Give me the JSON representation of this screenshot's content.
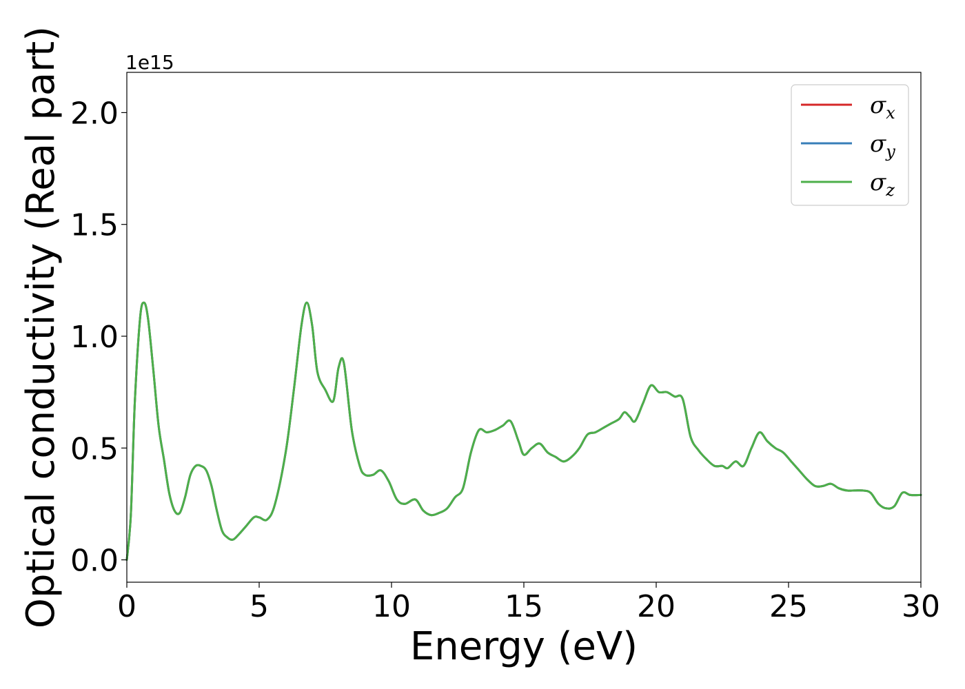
{
  "chart_data": {
    "type": "line",
    "xlabel": "Energy (eV)",
    "ylabel": "Optical conductivity (Real part)",
    "y_offset_label": "1e15",
    "xlim": [
      0,
      30
    ],
    "ylim": [
      -0.1,
      2.18
    ],
    "x_ticks": [
      0,
      5,
      10,
      15,
      20,
      25,
      30
    ],
    "x_tick_labels": [
      "0",
      "5",
      "10",
      "15",
      "20",
      "25",
      "30"
    ],
    "y_ticks": [
      0.0,
      0.5,
      1.0,
      1.5,
      2.0
    ],
    "y_tick_labels": [
      "0.0",
      "0.5",
      "1.0",
      "1.5",
      "2.0"
    ],
    "grid": false,
    "legend_position": "top-right",
    "x": [
      0,
      0.15,
      0.3,
      0.5,
      0.65,
      0.8,
      1.0,
      1.2,
      1.4,
      1.6,
      1.8,
      2.0,
      2.2,
      2.4,
      2.6,
      2.8,
      3.0,
      3.2,
      3.4,
      3.6,
      3.8,
      4.0,
      4.2,
      4.5,
      4.8,
      5.0,
      5.3,
      5.6,
      6.0,
      6.3,
      6.6,
      6.8,
      7.0,
      7.2,
      7.5,
      7.8,
      8.0,
      8.2,
      8.5,
      8.8,
      9.0,
      9.3,
      9.6,
      9.9,
      10.2,
      10.5,
      10.9,
      11.2,
      11.5,
      11.8,
      12.1,
      12.4,
      12.7,
      13.0,
      13.3,
      13.6,
      13.9,
      14.2,
      14.5,
      14.8,
      15.0,
      15.3,
      15.6,
      15.9,
      16.2,
      16.5,
      16.8,
      17.1,
      17.4,
      17.7,
      18.0,
      18.3,
      18.6,
      18.8,
      19.0,
      19.2,
      19.5,
      19.8,
      20.1,
      20.4,
      20.7,
      21.0,
      21.3,
      21.6,
      21.9,
      22.2,
      22.5,
      22.7,
      23.0,
      23.3,
      23.6,
      23.9,
      24.2,
      24.5,
      24.8,
      25.1,
      25.4,
      25.7,
      26.0,
      26.3,
      26.6,
      26.9,
      27.2,
      27.5,
      27.8,
      28.1,
      28.4,
      28.7,
      29.0,
      29.3,
      29.6,
      30.0
    ],
    "series": [
      {
        "name": "σx",
        "color": "#d62728",
        "values": [
          0.0,
          0.2,
          0.7,
          1.08,
          1.15,
          1.08,
          0.85,
          0.6,
          0.45,
          0.3,
          0.22,
          0.21,
          0.28,
          0.38,
          0.42,
          0.42,
          0.4,
          0.33,
          0.22,
          0.13,
          0.1,
          0.09,
          0.11,
          0.15,
          0.19,
          0.19,
          0.18,
          0.25,
          0.48,
          0.75,
          1.05,
          1.15,
          1.05,
          0.84,
          0.76,
          0.71,
          0.86,
          0.88,
          0.58,
          0.42,
          0.38,
          0.38,
          0.4,
          0.35,
          0.27,
          0.25,
          0.27,
          0.22,
          0.2,
          0.21,
          0.23,
          0.28,
          0.32,
          0.48,
          0.58,
          0.57,
          0.58,
          0.6,
          0.62,
          0.53,
          0.47,
          0.5,
          0.52,
          0.48,
          0.46,
          0.44,
          0.46,
          0.5,
          0.56,
          0.57,
          0.59,
          0.61,
          0.63,
          0.66,
          0.64,
          0.62,
          0.7,
          0.78,
          0.75,
          0.75,
          0.73,
          0.72,
          0.55,
          0.49,
          0.45,
          0.42,
          0.42,
          0.41,
          0.44,
          0.42,
          0.5,
          0.57,
          0.53,
          0.5,
          0.48,
          0.44,
          0.4,
          0.36,
          0.33,
          0.33,
          0.34,
          0.32,
          0.31,
          0.31,
          0.31,
          0.3,
          0.25,
          0.23,
          0.24,
          0.3,
          0.29,
          0.29
        ]
      },
      {
        "name": "σy",
        "color": "#377eb8",
        "values": [
          0.0,
          0.2,
          0.7,
          1.08,
          1.15,
          1.08,
          0.85,
          0.6,
          0.45,
          0.3,
          0.22,
          0.21,
          0.28,
          0.38,
          0.42,
          0.42,
          0.4,
          0.33,
          0.22,
          0.13,
          0.1,
          0.09,
          0.11,
          0.15,
          0.19,
          0.19,
          0.18,
          0.25,
          0.48,
          0.75,
          1.05,
          1.15,
          1.05,
          0.84,
          0.76,
          0.71,
          0.86,
          0.88,
          0.58,
          0.42,
          0.38,
          0.38,
          0.4,
          0.35,
          0.27,
          0.25,
          0.27,
          0.22,
          0.2,
          0.21,
          0.23,
          0.28,
          0.32,
          0.48,
          0.58,
          0.57,
          0.58,
          0.6,
          0.62,
          0.53,
          0.47,
          0.5,
          0.52,
          0.48,
          0.46,
          0.44,
          0.46,
          0.5,
          0.56,
          0.57,
          0.59,
          0.61,
          0.63,
          0.66,
          0.64,
          0.62,
          0.7,
          0.78,
          0.75,
          0.75,
          0.73,
          0.72,
          0.55,
          0.49,
          0.45,
          0.42,
          0.42,
          0.41,
          0.44,
          0.42,
          0.5,
          0.57,
          0.53,
          0.5,
          0.48,
          0.44,
          0.4,
          0.36,
          0.33,
          0.33,
          0.34,
          0.32,
          0.31,
          0.31,
          0.31,
          0.3,
          0.25,
          0.23,
          0.24,
          0.3,
          0.29,
          0.29
        ]
      },
      {
        "name": "σz",
        "color": "#4daf4a",
        "values": [
          0.0,
          0.2,
          0.7,
          1.08,
          1.15,
          1.08,
          0.85,
          0.6,
          0.45,
          0.3,
          0.22,
          0.21,
          0.28,
          0.38,
          0.42,
          0.42,
          0.4,
          0.33,
          0.22,
          0.13,
          0.1,
          0.09,
          0.11,
          0.15,
          0.19,
          0.19,
          0.18,
          0.25,
          0.48,
          0.75,
          1.05,
          1.15,
          1.05,
          0.84,
          0.76,
          0.71,
          0.86,
          0.88,
          0.58,
          0.42,
          0.38,
          0.38,
          0.4,
          0.35,
          0.27,
          0.25,
          0.27,
          0.22,
          0.2,
          0.21,
          0.23,
          0.28,
          0.32,
          0.48,
          0.58,
          0.57,
          0.58,
          0.6,
          0.62,
          0.53,
          0.47,
          0.5,
          0.52,
          0.48,
          0.46,
          0.44,
          0.46,
          0.5,
          0.56,
          0.57,
          0.59,
          0.61,
          0.63,
          0.66,
          0.64,
          0.62,
          0.7,
          0.78,
          0.75,
          0.75,
          0.73,
          0.72,
          0.55,
          0.49,
          0.45,
          0.42,
          0.42,
          0.41,
          0.44,
          0.42,
          0.5,
          0.57,
          0.53,
          0.5,
          0.48,
          0.44,
          0.4,
          0.36,
          0.33,
          0.33,
          0.34,
          0.32,
          0.31,
          0.31,
          0.31,
          0.3,
          0.25,
          0.23,
          0.24,
          0.3,
          0.29,
          0.29
        ]
      }
    ]
  }
}
